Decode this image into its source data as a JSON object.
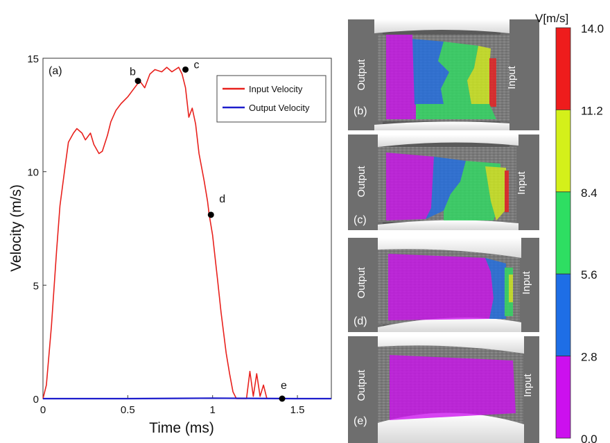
{
  "chart_data": [
    {
      "type": "line",
      "panel_label": "(a)",
      "xlabel": "Time (ms)",
      "ylabel": "Velocity (m/s)",
      "xlim": [
        0,
        1.7
      ],
      "ylim": [
        0,
        15
      ],
      "xticks": [
        "0",
        "0.5",
        "1",
        "1.5"
      ],
      "yticks": [
        "0",
        "5",
        "10",
        "15"
      ],
      "grid": false,
      "legend_position": "top-right",
      "series": [
        {
          "name": "Input Velocity",
          "color": "#e8201c",
          "x": [
            0,
            0.02,
            0.05,
            0.08,
            0.1,
            0.13,
            0.15,
            0.18,
            0.2,
            0.23,
            0.25,
            0.28,
            0.3,
            0.33,
            0.35,
            0.38,
            0.4,
            0.43,
            0.46,
            0.5,
            0.53,
            0.55,
            0.57,
            0.6,
            0.63,
            0.66,
            0.7,
            0.73,
            0.76,
            0.8,
            0.82,
            0.84,
            0.86,
            0.88,
            0.9,
            0.92,
            0.95,
            0.97,
            0.98,
            1.0,
            1.03,
            1.05,
            1.08,
            1.1,
            1.12,
            1.14,
            1.16,
            1.18,
            1.2,
            1.22,
            1.24,
            1.26,
            1.28,
            1.3,
            1.32
          ],
          "y": [
            0,
            0.6,
            3.2,
            6.5,
            8.5,
            10.2,
            11.3,
            11.7,
            11.9,
            11.7,
            11.4,
            11.7,
            11.2,
            10.8,
            10.9,
            11.6,
            12.2,
            12.7,
            13.0,
            13.3,
            13.6,
            13.8,
            14.0,
            13.7,
            14.3,
            14.5,
            14.4,
            14.6,
            14.4,
            14.6,
            14.3,
            13.7,
            12.4,
            12.8,
            12.1,
            10.8,
            9.6,
            8.7,
            8.1,
            7.2,
            5.2,
            3.8,
            2.0,
            1.1,
            0.3,
            0.0,
            0.0,
            0.0,
            0.0,
            1.2,
            0.1,
            1.1,
            0.1,
            0.6,
            0.0
          ]
        },
        {
          "name": "Output Velocity",
          "color": "#1c1ccc",
          "x": [
            0,
            0.5,
            1.0,
            1.5,
            1.7
          ],
          "y": [
            0,
            0,
            0.02,
            0,
            0
          ]
        }
      ],
      "points": [
        {
          "label": "b",
          "x": 0.56,
          "y": 14.0
        },
        {
          "label": "c",
          "x": 0.84,
          "y": 14.5
        },
        {
          "label": "d",
          "x": 0.99,
          "y": 8.1
        },
        {
          "label": "e",
          "x": 1.41,
          "y": 0.0
        }
      ]
    },
    {
      "type": "heatmap",
      "colorbar_title": "V[m/s]",
      "colorbar_ticks": [
        "14.0",
        "11.2",
        "8.4",
        "5.6",
        "2.8",
        "0.0"
      ],
      "colorbar_levels": [
        {
          "from": 11.2,
          "to": 14.0,
          "color": "#ee1c1c"
        },
        {
          "from": 8.4,
          "to": 11.2,
          "color": "#d4f01a"
        },
        {
          "from": 5.6,
          "to": 8.4,
          "color": "#2ede62"
        },
        {
          "from": 2.8,
          "to": 5.6,
          "color": "#1e6ee6"
        },
        {
          "from": 0.0,
          "to": 2.8,
          "color": "#cc10ee"
        }
      ],
      "frames": [
        {
          "label": "(b)",
          "left_label": "Output",
          "right_label": "Input"
        },
        {
          "label": "(c)",
          "left_label": "Output",
          "right_label": "Input"
        },
        {
          "label": "(d)",
          "left_label": "Output",
          "right_label": "Input"
        },
        {
          "label": "(e)",
          "left_label": "Output",
          "right_label": "Input"
        }
      ]
    }
  ]
}
